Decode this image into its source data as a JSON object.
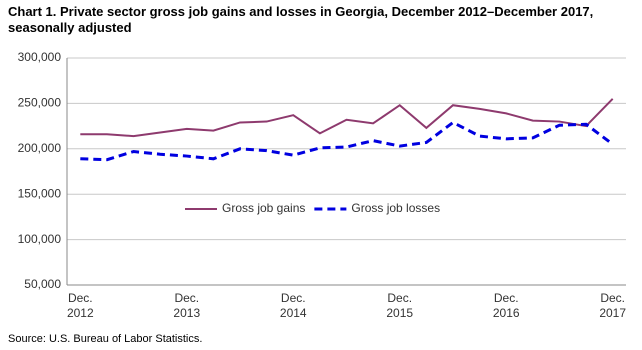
{
  "chart_data": {
    "type": "line",
    "title": "Chart 1. Private sector gross  job gains and losses  in Georgia, December 2012–December 2017, seasonally adjusted",
    "source": "Source: U.S. Bureau of Labor Statistics.",
    "categories": [
      "Dec. 2012",
      null,
      null,
      null,
      "Dec. 2013",
      null,
      null,
      null,
      "Dec. 2014",
      null,
      null,
      null,
      "Dec. 2015",
      null,
      null,
      null,
      "Dec. 2016",
      null,
      null,
      null,
      "Dec. 2017"
    ],
    "series": [
      {
        "name": "Gross job gains",
        "color": "#8e3a6e",
        "dash": false,
        "values": [
          216000,
          216000,
          214000,
          218000,
          222000,
          220000,
          229000,
          230000,
          237000,
          217000,
          232000,
          228000,
          248000,
          223000,
          248000,
          244000,
          239000,
          231000,
          230000,
          225000,
          255000
        ]
      },
      {
        "name": "Gross job losses",
        "color": "#0000e0",
        "dash": true,
        "values": [
          189000,
          188000,
          197000,
          194000,
          192000,
          189000,
          200000,
          198000,
          193000,
          201000,
          202000,
          209000,
          203000,
          207000,
          229000,
          214000,
          211000,
          212000,
          226000,
          227000,
          205000
        ]
      }
    ],
    "ylim": [
      50000,
      300000
    ],
    "yticks": [
      {
        "value": 50000,
        "label": "50,000"
      },
      {
        "value": 100000,
        "label": "100,000"
      },
      {
        "value": 150000,
        "label": "150,000"
      },
      {
        "value": 200000,
        "label": "200,000"
      },
      {
        "value": 250000,
        "label": "250,000"
      },
      {
        "value": 300000,
        "label": "300,000"
      }
    ],
    "grid": true,
    "legend": "center"
  }
}
